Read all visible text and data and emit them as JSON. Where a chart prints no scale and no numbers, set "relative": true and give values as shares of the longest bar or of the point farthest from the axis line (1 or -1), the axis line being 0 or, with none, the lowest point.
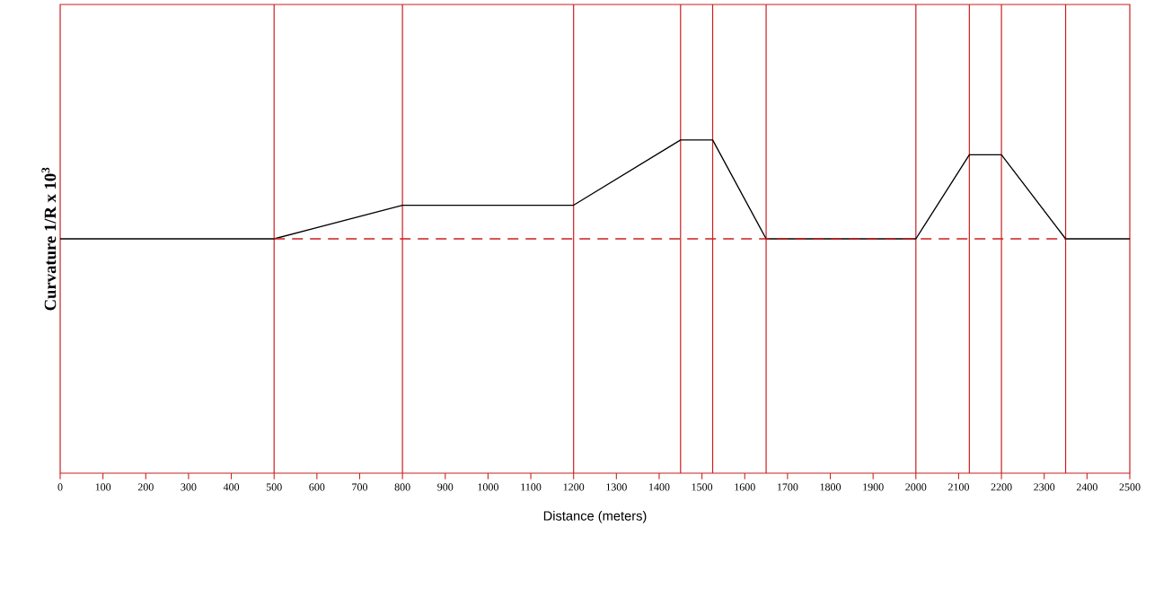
{
  "chart_data": {
    "type": "line",
    "relative": true,
    "xlabel": "Distance (meters)",
    "ylabel": "Curvature  1/R x 10$^{3}$",
    "xlim": [
      0,
      2500
    ],
    "xticks": [
      0,
      100,
      200,
      300,
      400,
      500,
      600,
      700,
      800,
      900,
      1000,
      1100,
      1200,
      1300,
      1400,
      1500,
      1600,
      1700,
      1800,
      1900,
      2000,
      2100,
      2200,
      2300,
      2400,
      2500
    ],
    "marker": "none",
    "series": [
      {
        "color": "#000000",
        "line_style": "solid",
        "x": [
          0,
          500,
          800,
          1200,
          1450,
          1525,
          1650,
          2000,
          2125,
          2200,
          2350,
          2500
        ],
        "values": [
          0,
          0,
          0.34,
          0.34,
          1,
          1,
          0,
          0,
          0.85,
          0.85,
          0,
          0
        ]
      },
      {
        "color": "#cc1f1f",
        "line_style": "dashed",
        "x": [
          500,
          2350
        ],
        "values": [
          0,
          0
        ]
      }
    ],
    "ref_lines": [
      {
        "axis": "x",
        "value": 500,
        "color": "#cc1f1f"
      },
      {
        "axis": "x",
        "value": 800,
        "color": "#cc1f1f"
      },
      {
        "axis": "x",
        "value": 1200,
        "color": "#cc1f1f"
      },
      {
        "axis": "x",
        "value": 1450,
        "color": "#cc1f1f"
      },
      {
        "axis": "x",
        "value": 1525,
        "color": "#cc1f1f"
      },
      {
        "axis": "x",
        "value": 1650,
        "color": "#cc1f1f"
      },
      {
        "axis": "x",
        "value": 2000,
        "color": "#cc1f1f"
      },
      {
        "axis": "x",
        "value": 2125,
        "color": "#cc1f1f"
      },
      {
        "axis": "x",
        "value": 2200,
        "color": "#cc1f1f"
      },
      {
        "axis": "x",
        "value": 2350,
        "color": "#cc1f1f"
      }
    ]
  }
}
